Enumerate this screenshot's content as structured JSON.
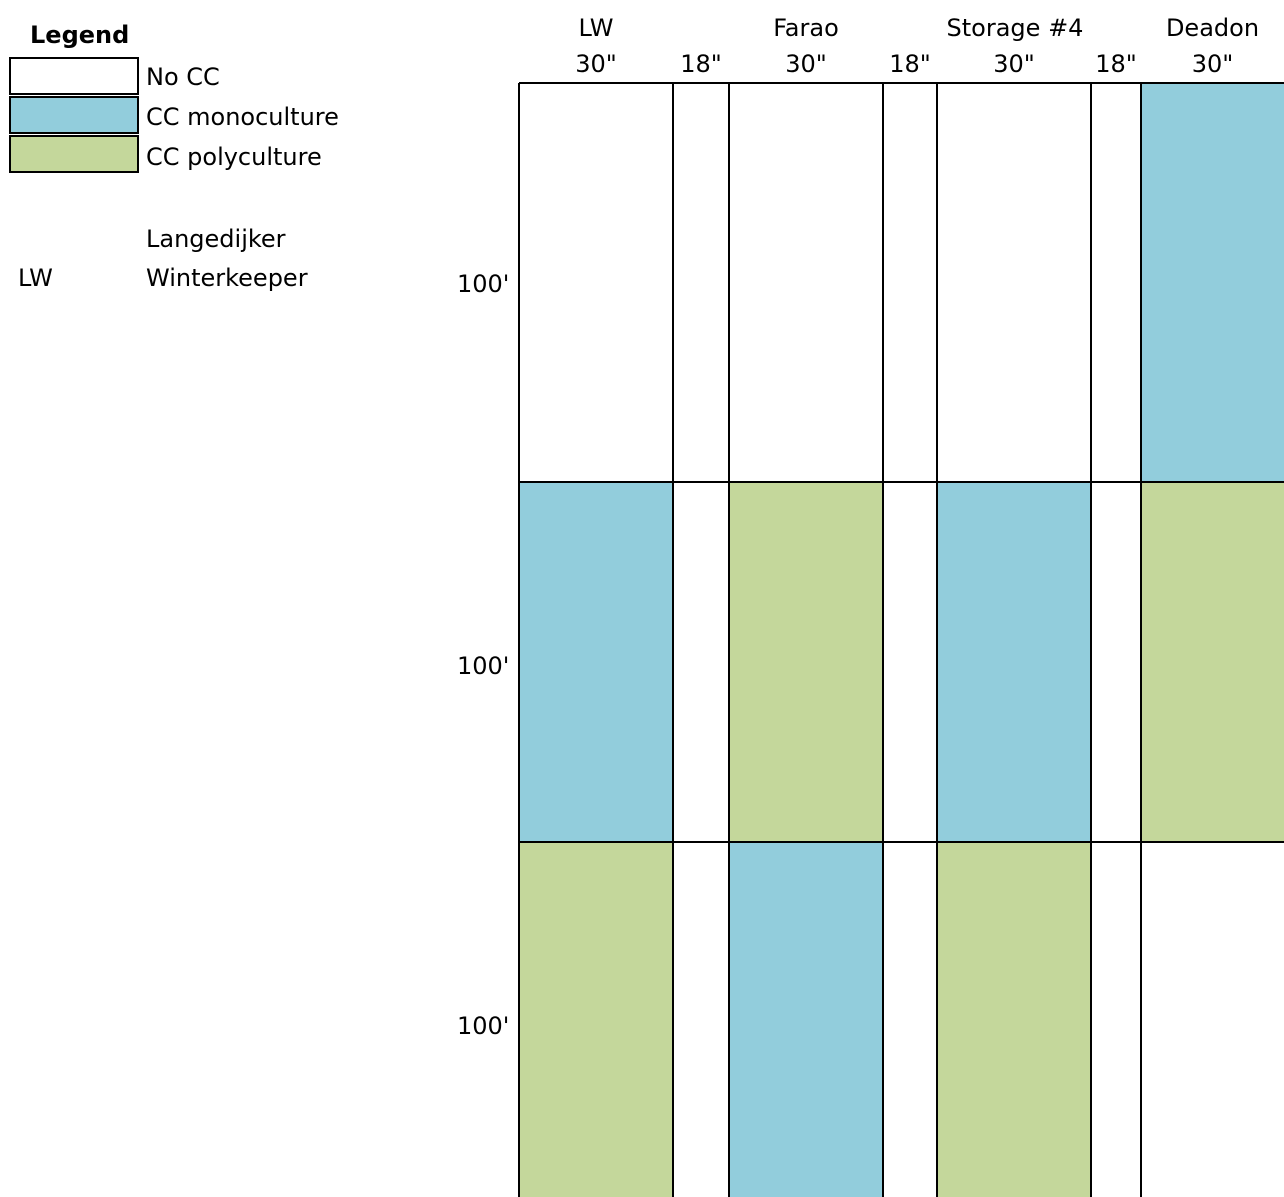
{
  "legend": {
    "title": "Legend",
    "items": [
      {
        "label": "No CC",
        "color": "#ffffff"
      },
      {
        "label": "CC monoculture",
        "color": "#92cddc"
      },
      {
        "label": "CC polyculture",
        "color": "#c4d79b"
      }
    ],
    "abbreviation": {
      "code": "LW",
      "line1": "Langedijker",
      "line2": "Winterkeeper"
    }
  },
  "columns": [
    {
      "name": "LW",
      "width_label": "30\"",
      "type": "plot"
    },
    {
      "name": "",
      "width_label": "18\"",
      "type": "gap"
    },
    {
      "name": "Farao",
      "width_label": "30\"",
      "type": "plot"
    },
    {
      "name": "",
      "width_label": "18\"",
      "type": "gap"
    },
    {
      "name": "Storage #4",
      "width_label": "30\"",
      "type": "plot"
    },
    {
      "name": "",
      "width_label": "18\"",
      "type": "gap"
    },
    {
      "name": "Deadon",
      "width_label": "30\"",
      "type": "plot"
    }
  ],
  "rows": [
    {
      "label": "100'"
    },
    {
      "label": "100'"
    },
    {
      "label": "100'"
    }
  ],
  "grid": [
    [
      "none",
      "none",
      "none",
      "mono"
    ],
    [
      "mono",
      "poly",
      "mono",
      "poly"
    ],
    [
      "poly",
      "mono",
      "poly",
      "none"
    ]
  ],
  "colors": {
    "none": "#ffffff",
    "mono": "#92cddc",
    "poly": "#c4d79b",
    "line": "#000000"
  }
}
